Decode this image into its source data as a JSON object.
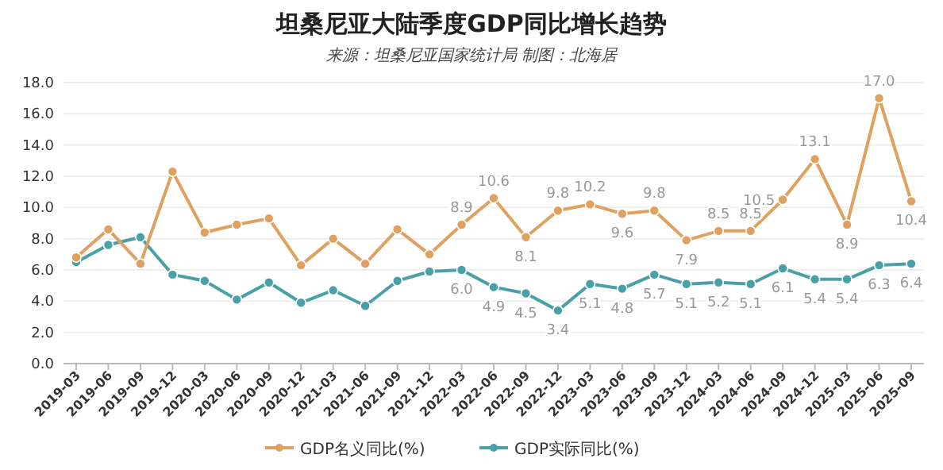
{
  "chart_data": {
    "type": "line",
    "title": "坦桑尼亚大陆季度GDP同比增长趋势",
    "subtitle": "来源：坦桑尼亚国家统计局 制图：北海居",
    "categories": [
      "2019-03",
      "2019-06",
      "2019-09",
      "2019-12",
      "2020-03",
      "2020-06",
      "2020-09",
      "2020-12",
      "2021-03",
      "2021-06",
      "2021-09",
      "2021-12",
      "2022-03",
      "2022-06",
      "2022-09",
      "2022-12",
      "2023-03",
      "2023-06",
      "2023-09",
      "2023-12",
      "2024-03",
      "2024-06",
      "2024-09",
      "2024-12",
      "2025-03",
      "2025-06",
      "2025-09"
    ],
    "series": [
      {
        "name": "GDP名义同比(%)",
        "color": "#e0a060",
        "values": [
          6.8,
          8.6,
          6.4,
          12.3,
          8.4,
          8.9,
          9.3,
          6.3,
          8.0,
          6.4,
          8.6,
          7.0,
          8.9,
          10.6,
          8.1,
          9.8,
          10.2,
          9.6,
          9.8,
          7.9,
          8.5,
          8.5,
          10.5,
          13.1,
          8.9,
          17.0,
          10.4
        ],
        "value_labels": [
          null,
          null,
          null,
          null,
          null,
          null,
          null,
          null,
          null,
          null,
          null,
          null,
          "8.9",
          "10.6",
          "8.1",
          "9.8",
          "10.2",
          "9.6",
          "9.8",
          "7.9",
          "8.5",
          "8.5",
          "10.5",
          "13.1",
          "8.9",
          "17.0",
          "10.4"
        ]
      },
      {
        "name": "GDP实际同比(%)",
        "color": "#4aa0a8",
        "values": [
          6.5,
          7.6,
          8.1,
          5.7,
          5.3,
          4.1,
          5.2,
          3.9,
          4.7,
          3.7,
          5.3,
          5.9,
          6.0,
          4.9,
          4.5,
          3.4,
          5.1,
          4.8,
          5.7,
          5.1,
          5.2,
          5.1,
          6.1,
          5.4,
          5.4,
          6.3,
          6.4
        ],
        "value_labels": [
          null,
          null,
          null,
          null,
          null,
          null,
          null,
          null,
          null,
          null,
          null,
          null,
          "6.0",
          "4.9",
          "4.5",
          "3.4",
          "5.1",
          "4.8",
          "5.7",
          "5.1",
          "5.2",
          "5.1",
          "6.1",
          "5.4",
          "5.4",
          "6.3",
          "6.4"
        ]
      }
    ],
    "ylim": [
      0,
      18
    ],
    "yticks": [
      {
        "value": 0,
        "label": "0.0"
      },
      {
        "value": 2,
        "label": "2.0"
      },
      {
        "value": 4,
        "label": "4.0"
      },
      {
        "value": 6,
        "label": "6.0"
      },
      {
        "value": 8,
        "label": "8.0"
      },
      {
        "value": 10,
        "label": "10.0"
      },
      {
        "value": 12,
        "label": "12.0"
      },
      {
        "value": 14,
        "label": "14.0"
      },
      {
        "value": 16,
        "label": "16.0"
      },
      {
        "value": 18,
        "label": "18.0"
      }
    ],
    "grid": "y",
    "legend": "bottom",
    "marker": "circle",
    "line_style": "solid"
  }
}
